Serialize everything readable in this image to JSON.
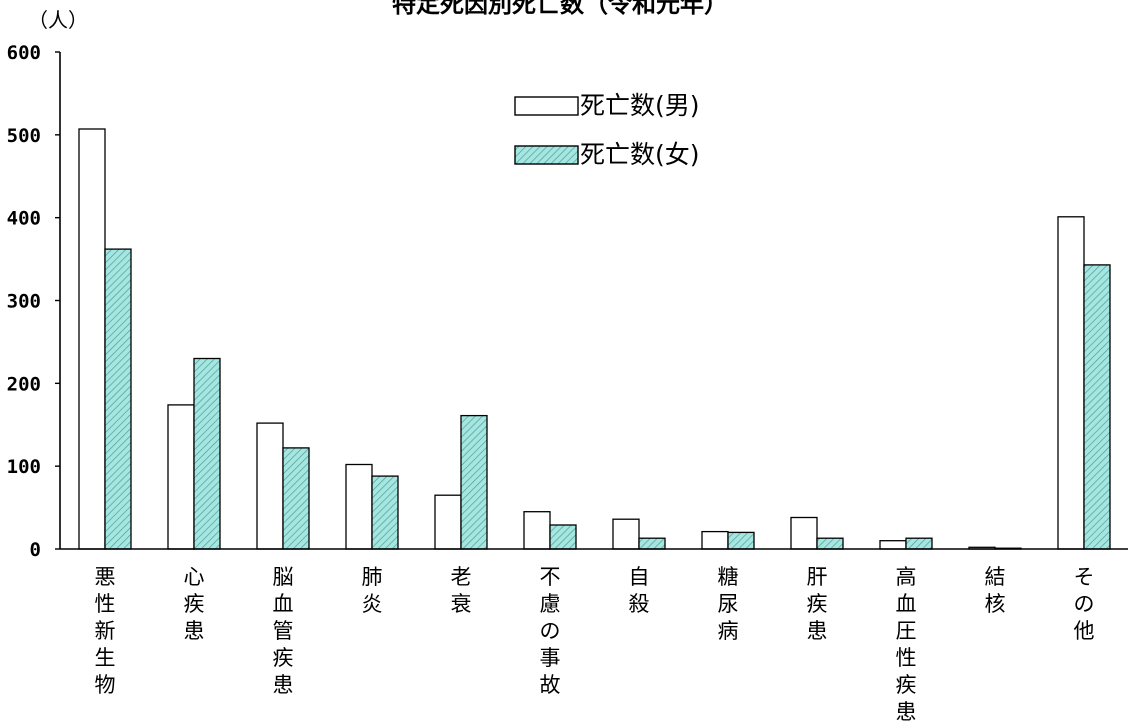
{
  "chart_data": {
    "type": "bar",
    "title": "特定死因別死亡数（令和元年）",
    "ylabel": "（人）",
    "xlabel": "",
    "ylim": [
      0,
      600
    ],
    "yticks": [
      0,
      100,
      200,
      300,
      400,
      500,
      600
    ],
    "grid": false,
    "legend_position": "top-center",
    "categories": [
      "悪性新生物",
      "心疾患",
      "脳血管疾患",
      "肺炎",
      "老衰",
      "不慮の事故",
      "自殺",
      "糖尿病",
      "肝疾患",
      "高血圧性疾患",
      "結核",
      "その他"
    ],
    "series": [
      {
        "name": "死亡数(男)",
        "color": "#ffffff",
        "values": [
          507,
          174,
          152,
          102,
          65,
          45,
          36,
          21,
          38,
          10,
          2,
          401
        ]
      },
      {
        "name": "死亡数(女)",
        "color": "#9fe3dd",
        "values": [
          362,
          230,
          122,
          88,
          161,
          29,
          13,
          20,
          13,
          13,
          1,
          343
        ]
      }
    ]
  }
}
